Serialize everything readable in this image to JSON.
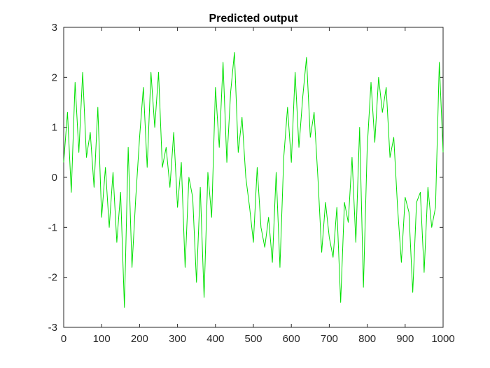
{
  "chart_data": {
    "type": "line",
    "title": "Predicted output",
    "xlabel": "",
    "ylabel": "",
    "xlim": [
      0,
      1000
    ],
    "ylim": [
      -3,
      3
    ],
    "xticks": [
      "0",
      "100",
      "200",
      "300",
      "400",
      "500",
      "600",
      "700",
      "800",
      "900",
      "1000"
    ],
    "yticks": [
      "3",
      "2",
      "1",
      "0",
      "-1",
      "-2",
      "-3"
    ],
    "grid": false,
    "series": [
      {
        "color": "#00e000",
        "x": [
          0,
          10,
          20,
          30,
          40,
          50,
          60,
          70,
          80,
          90,
          100,
          110,
          120,
          130,
          140,
          150,
          160,
          170,
          180,
          190,
          200,
          210,
          220,
          230,
          240,
          250,
          260,
          270,
          280,
          290,
          300,
          310,
          320,
          330,
          340,
          350,
          360,
          370,
          380,
          390,
          400,
          410,
          420,
          430,
          440,
          450,
          460,
          470,
          480,
          490,
          500,
          510,
          520,
          530,
          540,
          550,
          560,
          570,
          580,
          590,
          600,
          610,
          620,
          630,
          640,
          650,
          660,
          670,
          680,
          690,
          700,
          710,
          720,
          730,
          740,
          750,
          760,
          770,
          780,
          790,
          800,
          810,
          820,
          830,
          840,
          850,
          860,
          870,
          880,
          890,
          900,
          910,
          920,
          930,
          940,
          950,
          960,
          970,
          980,
          990,
          1000
        ],
        "values": [
          0.3,
          1.3,
          -0.3,
          1.9,
          0.5,
          2.1,
          0.4,
          0.9,
          -0.2,
          1.4,
          -0.8,
          0.2,
          -1.0,
          0.1,
          -1.3,
          -0.3,
          -2.6,
          0.6,
          -1.8,
          -0.4,
          0.8,
          1.8,
          0.2,
          2.1,
          1.0,
          2.1,
          0.2,
          0.6,
          -0.2,
          0.9,
          -0.6,
          0.3,
          -1.8,
          0.0,
          -0.4,
          -2.1,
          -0.2,
          -2.4,
          0.1,
          -0.8,
          1.8,
          0.6,
          2.3,
          0.3,
          1.7,
          2.5,
          0.5,
          1.2,
          0.0,
          -0.6,
          -1.3,
          0.2,
          -1.0,
          -1.4,
          -0.8,
          -1.7,
          0.1,
          -1.8,
          0.4,
          1.4,
          0.3,
          2.1,
          0.6,
          1.6,
          2.4,
          0.8,
          1.3,
          0.0,
          -1.5,
          -0.5,
          -1.2,
          -1.6,
          -0.6,
          -2.5,
          -0.5,
          -0.9,
          0.4,
          -1.3,
          1.0,
          -2.2,
          0.6,
          1.9,
          0.7,
          2.0,
          1.3,
          1.8,
          0.4,
          0.8,
          -0.6,
          -1.7,
          -0.4,
          -0.7,
          -2.3,
          -0.5,
          -0.3,
          -1.9,
          -0.2,
          -1.0,
          -0.6,
          2.3,
          0.5
        ]
      }
    ]
  }
}
